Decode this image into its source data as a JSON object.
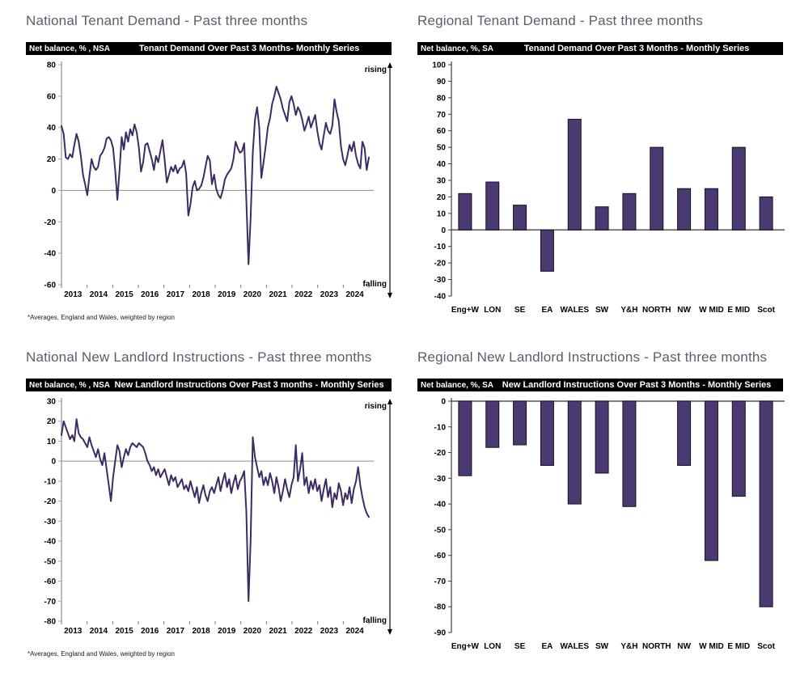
{
  "colors": {
    "line": "#3d2b63",
    "bar_fill": "#4b3a72",
    "bar_border": "#17101f",
    "title_text": "#57606a",
    "header_bg": "#000000",
    "header_fg": "#ffffff",
    "zero_line": "#8c8c8c",
    "axis_line": "#a6a6a6",
    "tick_text": "#000000"
  },
  "charts": [
    {
      "title": "National Tenant Demand - Past three months",
      "header_left": "Net balance, % , NSA",
      "header_title": "Tenant Demand Over Past 3 Months- Monthly Series",
      "footnote": "*Averages, England and Wales, weighted by region"
    },
    {
      "title": "Regional Tenant Demand - Past three months",
      "header_left": "Net balance, %, SA",
      "header_title": "Tenand Demand Over Past 3 Months - Monthly Series"
    },
    {
      "title": "National New Landlord Instructions - Past three months",
      "header_left": "Net balance, % , NSA",
      "header_title": "New Landlord Instructions Over Past 3 months - Monthly Series",
      "footnote": "*Averages, England and Wales, weighted by region"
    },
    {
      "title": "Regional New Landlord Instructions - Past three months",
      "header_left": "Net balance, %, SA",
      "header_title": "New Landlord Instructions Over Past 3 Months - Monthly Series"
    }
  ],
  "chart_data": [
    {
      "type": "line",
      "title": "Tenant Demand Over Past 3 Months- Monthly Series",
      "ylabel": "Net balance, % , NSA",
      "ylim": [
        -60,
        80
      ],
      "y_ticks": [
        80,
        60,
        40,
        20,
        0,
        -20,
        -40,
        -60
      ],
      "x_tick_labels": [
        "2013",
        "2014",
        "2015",
        "2016",
        "2017",
        "2018",
        "2019",
        "2020",
        "2021",
        "2022",
        "2023",
        "2024"
      ],
      "x_unit": "month",
      "annotations": {
        "top": "rising",
        "bottom": "falling"
      },
      "grid": false,
      "values": [
        41,
        36,
        21,
        20,
        23,
        21,
        29,
        36,
        31,
        22,
        10,
        4,
        -3,
        9,
        20,
        15,
        13,
        15,
        22,
        24,
        27,
        33,
        34,
        32,
        27,
        13,
        -6,
        12,
        34,
        26,
        37,
        31,
        39,
        35,
        42,
        37,
        27,
        12,
        18,
        29,
        30,
        25,
        20,
        13,
        22,
        18,
        25,
        32,
        19,
        5,
        10,
        15,
        12,
        16,
        11,
        14,
        15,
        19,
        11,
        -16,
        -9,
        2,
        6,
        0,
        1,
        3,
        8,
        15,
        22,
        19,
        4,
        10,
        1,
        -3,
        -5,
        0,
        7,
        10,
        12,
        14,
        20,
        31,
        27,
        24,
        25,
        30,
        -6,
        -47,
        -18,
        24,
        45,
        53,
        40,
        8,
        18,
        28,
        40,
        46,
        55,
        60,
        66,
        62,
        58,
        52,
        48,
        44,
        56,
        60,
        55,
        48,
        53,
        50,
        45,
        38,
        42,
        47,
        40,
        44,
        48,
        38,
        30,
        26,
        35,
        43,
        38,
        36,
        41,
        58,
        50,
        44,
        28,
        20,
        16,
        22,
        29,
        25,
        31,
        22,
        17,
        14,
        31,
        27,
        13,
        21
      ]
    },
    {
      "type": "bar",
      "title": "Tenand Demand Over Past 3 Months - Monthly Series",
      "ylabel": "Net balance, %, SA",
      "ylim": [
        -40,
        100
      ],
      "y_ticks": [
        100,
        90,
        80,
        70,
        60,
        50,
        40,
        30,
        20,
        10,
        0,
        -10,
        -20,
        -30,
        -40
      ],
      "categories": [
        "Eng+W",
        "LON",
        "SE",
        "EA",
        "WALES",
        "SW",
        "Y&H",
        "NORTH",
        "NW",
        "W MID",
        "E MID",
        "Scot"
      ],
      "values": [
        22,
        29,
        15,
        -25,
        67,
        14,
        22,
        50,
        25,
        25,
        50,
        20
      ],
      "grid": false
    },
    {
      "type": "line",
      "title": "New Landlord Instructions Over Past 3 months - Monthly Series",
      "ylabel": "Net balance, % , NSA",
      "ylim": [
        -80,
        30
      ],
      "y_ticks": [
        30,
        20,
        10,
        0,
        -10,
        -20,
        -30,
        -40,
        -50,
        -60,
        -70,
        -80
      ],
      "x_tick_labels": [
        "2013",
        "2014",
        "2015",
        "2016",
        "2017",
        "2018",
        "2019",
        "2020",
        "2021",
        "2022",
        "2023",
        "2024"
      ],
      "x_unit": "month",
      "annotations": {
        "top": "rising",
        "bottom": "falling"
      },
      "grid": false,
      "values": [
        13,
        20,
        17,
        14,
        11,
        13,
        10,
        21,
        14,
        12,
        11,
        9,
        7,
        12,
        8,
        5,
        2,
        6,
        1,
        -2,
        4,
        -4,
        -12,
        -20,
        -8,
        0,
        8,
        5,
        -3,
        2,
        6,
        3,
        7,
        9,
        8,
        7,
        9,
        8,
        7,
        4,
        0,
        -2,
        -5,
        -3,
        -7,
        -4,
        -8,
        -6,
        -4,
        -8,
        -12,
        -7,
        -10,
        -8,
        -13,
        -11,
        -9,
        -14,
        -12,
        -15,
        -10,
        -14,
        -18,
        -13,
        -21,
        -16,
        -12,
        -17,
        -20,
        -15,
        -13,
        -16,
        -12,
        -8,
        -15,
        -10,
        -6,
        -13,
        -9,
        -16,
        -11,
        -7,
        -14,
        -10,
        -8,
        -5,
        -25,
        -70,
        -40,
        12,
        2,
        -3,
        -8,
        -5,
        -12,
        -8,
        -12,
        -6,
        -10,
        -16,
        -8,
        -13,
        -20,
        -15,
        -9,
        -14,
        -18,
        -12,
        -8,
        8,
        -10,
        -4,
        4,
        -12,
        -8,
        -16,
        -10,
        -14,
        -9,
        -15,
        -12,
        -20,
        -14,
        -9,
        -18,
        -13,
        -23,
        -16,
        -19,
        -11,
        -15,
        -22,
        -16,
        -19,
        -13,
        -21,
        -14,
        -10,
        -3,
        -12,
        -18,
        -23,
        -26,
        -28
      ]
    },
    {
      "type": "bar",
      "title": "New Landlord Instructions Over Past 3 Months - Monthly Series",
      "ylabel": "Net balance, %, SA",
      "ylim": [
        -90,
        0
      ],
      "y_ticks": [
        0,
        -10,
        -20,
        -30,
        -40,
        -50,
        -60,
        -70,
        -80,
        -90
      ],
      "categories": [
        "Eng+W",
        "LON",
        "SE",
        "EA",
        "WALES",
        "SW",
        "Y&H",
        "NORTH",
        "NW",
        "W MID",
        "E MID",
        "Scot"
      ],
      "values": [
        -29,
        -18,
        -17,
        -25,
        -40,
        -28,
        -41,
        0,
        -25,
        -62,
        -37,
        -80
      ],
      "grid": false
    }
  ]
}
